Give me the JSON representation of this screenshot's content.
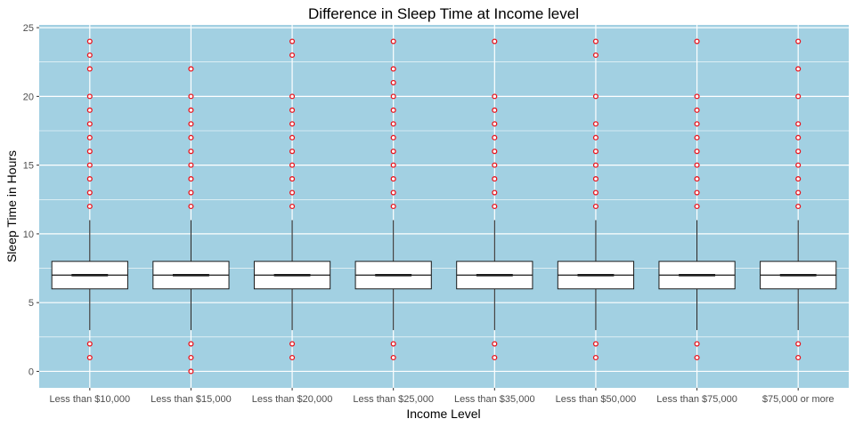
{
  "chart_data": {
    "type": "box",
    "title": "Difference in Sleep Time at Income level",
    "xlabel": "Income Level",
    "ylabel": "Sleep Time in Hours",
    "ylim": [
      -1.2,
      25.2
    ],
    "yticks": [
      0,
      5,
      10,
      15,
      20,
      25
    ],
    "grid": true,
    "colors": {
      "panel": "#a2d0e2",
      "grid": "#ffffff",
      "box_fill": "#ffffff",
      "box_line": "#1a1a1a",
      "outlier": "#e8141d"
    },
    "categories": [
      "Less than $10,000",
      "Less than $15,000",
      "Less than $20,000",
      "Less than $25,000",
      "Less than $35,000",
      "Less than $50,000",
      "Less than $75,000",
      "$75,000 or more"
    ],
    "boxes": [
      {
        "q1": 6,
        "median": 7,
        "q3": 8,
        "whisker_low": 3,
        "whisker_high": 11,
        "outliers": [
          1,
          2,
          12,
          13,
          14,
          15,
          16,
          17,
          18,
          19,
          20,
          22,
          23,
          24
        ]
      },
      {
        "q1": 6,
        "median": 7,
        "q3": 8,
        "whisker_low": 3,
        "whisker_high": 11,
        "outliers": [
          0,
          1,
          2,
          12,
          13,
          14,
          15,
          16,
          17,
          18,
          19,
          20,
          22
        ]
      },
      {
        "q1": 6,
        "median": 7,
        "q3": 8,
        "whisker_low": 3,
        "whisker_high": 11,
        "outliers": [
          1,
          2,
          12,
          13,
          14,
          15,
          16,
          17,
          18,
          19,
          20,
          23,
          24
        ]
      },
      {
        "q1": 6,
        "median": 7,
        "q3": 8,
        "whisker_low": 3,
        "whisker_high": 11,
        "outliers": [
          1,
          2,
          12,
          13,
          14,
          15,
          16,
          17,
          18,
          19,
          20,
          21,
          22,
          24
        ]
      },
      {
        "q1": 6,
        "median": 7,
        "q3": 8,
        "whisker_low": 3,
        "whisker_high": 11,
        "outliers": [
          1,
          2,
          12,
          13,
          14,
          15,
          16,
          17,
          18,
          19,
          20,
          24
        ]
      },
      {
        "q1": 6,
        "median": 7,
        "q3": 8,
        "whisker_low": 3,
        "whisker_high": 11,
        "outliers": [
          1,
          2,
          12,
          13,
          14,
          15,
          16,
          17,
          18,
          20,
          23,
          24
        ]
      },
      {
        "q1": 6,
        "median": 7,
        "q3": 8,
        "whisker_low": 3,
        "whisker_high": 11,
        "outliers": [
          1,
          2,
          12,
          13,
          14,
          15,
          16,
          17,
          18,
          19,
          20,
          24
        ]
      },
      {
        "q1": 6,
        "median": 7,
        "q3": 8,
        "whisker_low": 3,
        "whisker_high": 11,
        "outliers": [
          1,
          2,
          12,
          13,
          14,
          15,
          16,
          17,
          18,
          20,
          22,
          24
        ]
      }
    ]
  }
}
